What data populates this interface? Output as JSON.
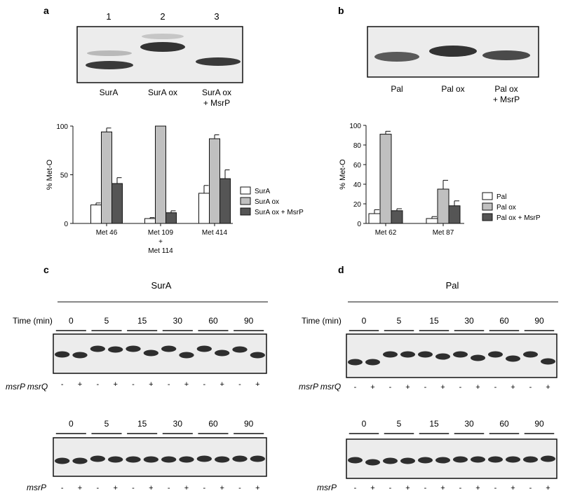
{
  "panels": {
    "a": {
      "letter": "a",
      "lane_numbers": [
        "1",
        "2",
        "3"
      ],
      "lane_labels": [
        [
          "SurA"
        ],
        [
          "SurA ox"
        ],
        [
          "SurA ox",
          "+ MsrP"
        ]
      ]
    },
    "b": {
      "letter": "b",
      "lane_numbers": [
        "1",
        "2",
        "3"
      ],
      "lane_labels": [
        [
          "Pal"
        ],
        [
          "Pal ox"
        ],
        [
          "Pal ox",
          "+ MsrP"
        ]
      ]
    },
    "c": {
      "letter": "c",
      "protein": "SurA",
      "time_label": "Time (min)",
      "times": [
        "0",
        "5",
        "15",
        "30",
        "60",
        "90"
      ],
      "row1_label": "msrP msrQ",
      "row2_label": "msrP",
      "signs": [
        "-",
        "+",
        "-",
        "+",
        "-",
        "+",
        "-",
        "+",
        "-",
        "+",
        "-",
        "+"
      ]
    },
    "d": {
      "letter": "d",
      "protein": "Pal",
      "time_label": "Time (min)",
      "times": [
        "0",
        "5",
        "15",
        "30",
        "60",
        "90"
      ],
      "row1_label": "msrP msrQ",
      "row2_label": "msrP",
      "signs": [
        "-",
        "+",
        "-",
        "+",
        "-",
        "+",
        "-",
        "+",
        "-",
        "+",
        "-",
        "+"
      ]
    }
  },
  "chart_data": [
    {
      "type": "bar",
      "ylabel": "% Met-O",
      "ylim": [
        0,
        100
      ],
      "yticks": [
        0,
        50,
        100
      ],
      "categories": [
        [
          "Met 46"
        ],
        [
          "Met 109",
          "+",
          "Met 114"
        ],
        [
          "Met 414"
        ]
      ],
      "series": [
        {
          "name": "SurA",
          "color": "#ffffff",
          "values": [
            19,
            5,
            31
          ],
          "errors": [
            2,
            1,
            8
          ]
        },
        {
          "name": "SurA ox",
          "color": "#c0c0c0",
          "values": [
            94,
            100,
            87
          ],
          "errors": [
            4,
            0,
            4
          ]
        },
        {
          "name": "SurA ox + MsrP",
          "color": "#555555",
          "values": [
            41,
            11,
            46
          ],
          "errors": [
            6,
            2,
            9
          ]
        }
      ],
      "legend": "right"
    },
    {
      "type": "bar",
      "ylabel": "% Met-O",
      "ylim": [
        0,
        100
      ],
      "yticks": [
        0,
        20,
        40,
        60,
        80,
        100
      ],
      "categories": [
        [
          "Met 62"
        ],
        [
          "Met 87"
        ]
      ],
      "series": [
        {
          "name": "Pal",
          "color": "#ffffff",
          "values": [
            10,
            5
          ],
          "errors": [
            4,
            2
          ]
        },
        {
          "name": "Pal ox",
          "color": "#c0c0c0",
          "values": [
            91,
            35
          ],
          "errors": [
            3,
            9
          ]
        },
        {
          "name": "Pal ox + MsrP",
          "color": "#555555",
          "values": [
            13,
            18
          ],
          "errors": [
            2,
            5
          ]
        }
      ],
      "legend": "right"
    }
  ]
}
